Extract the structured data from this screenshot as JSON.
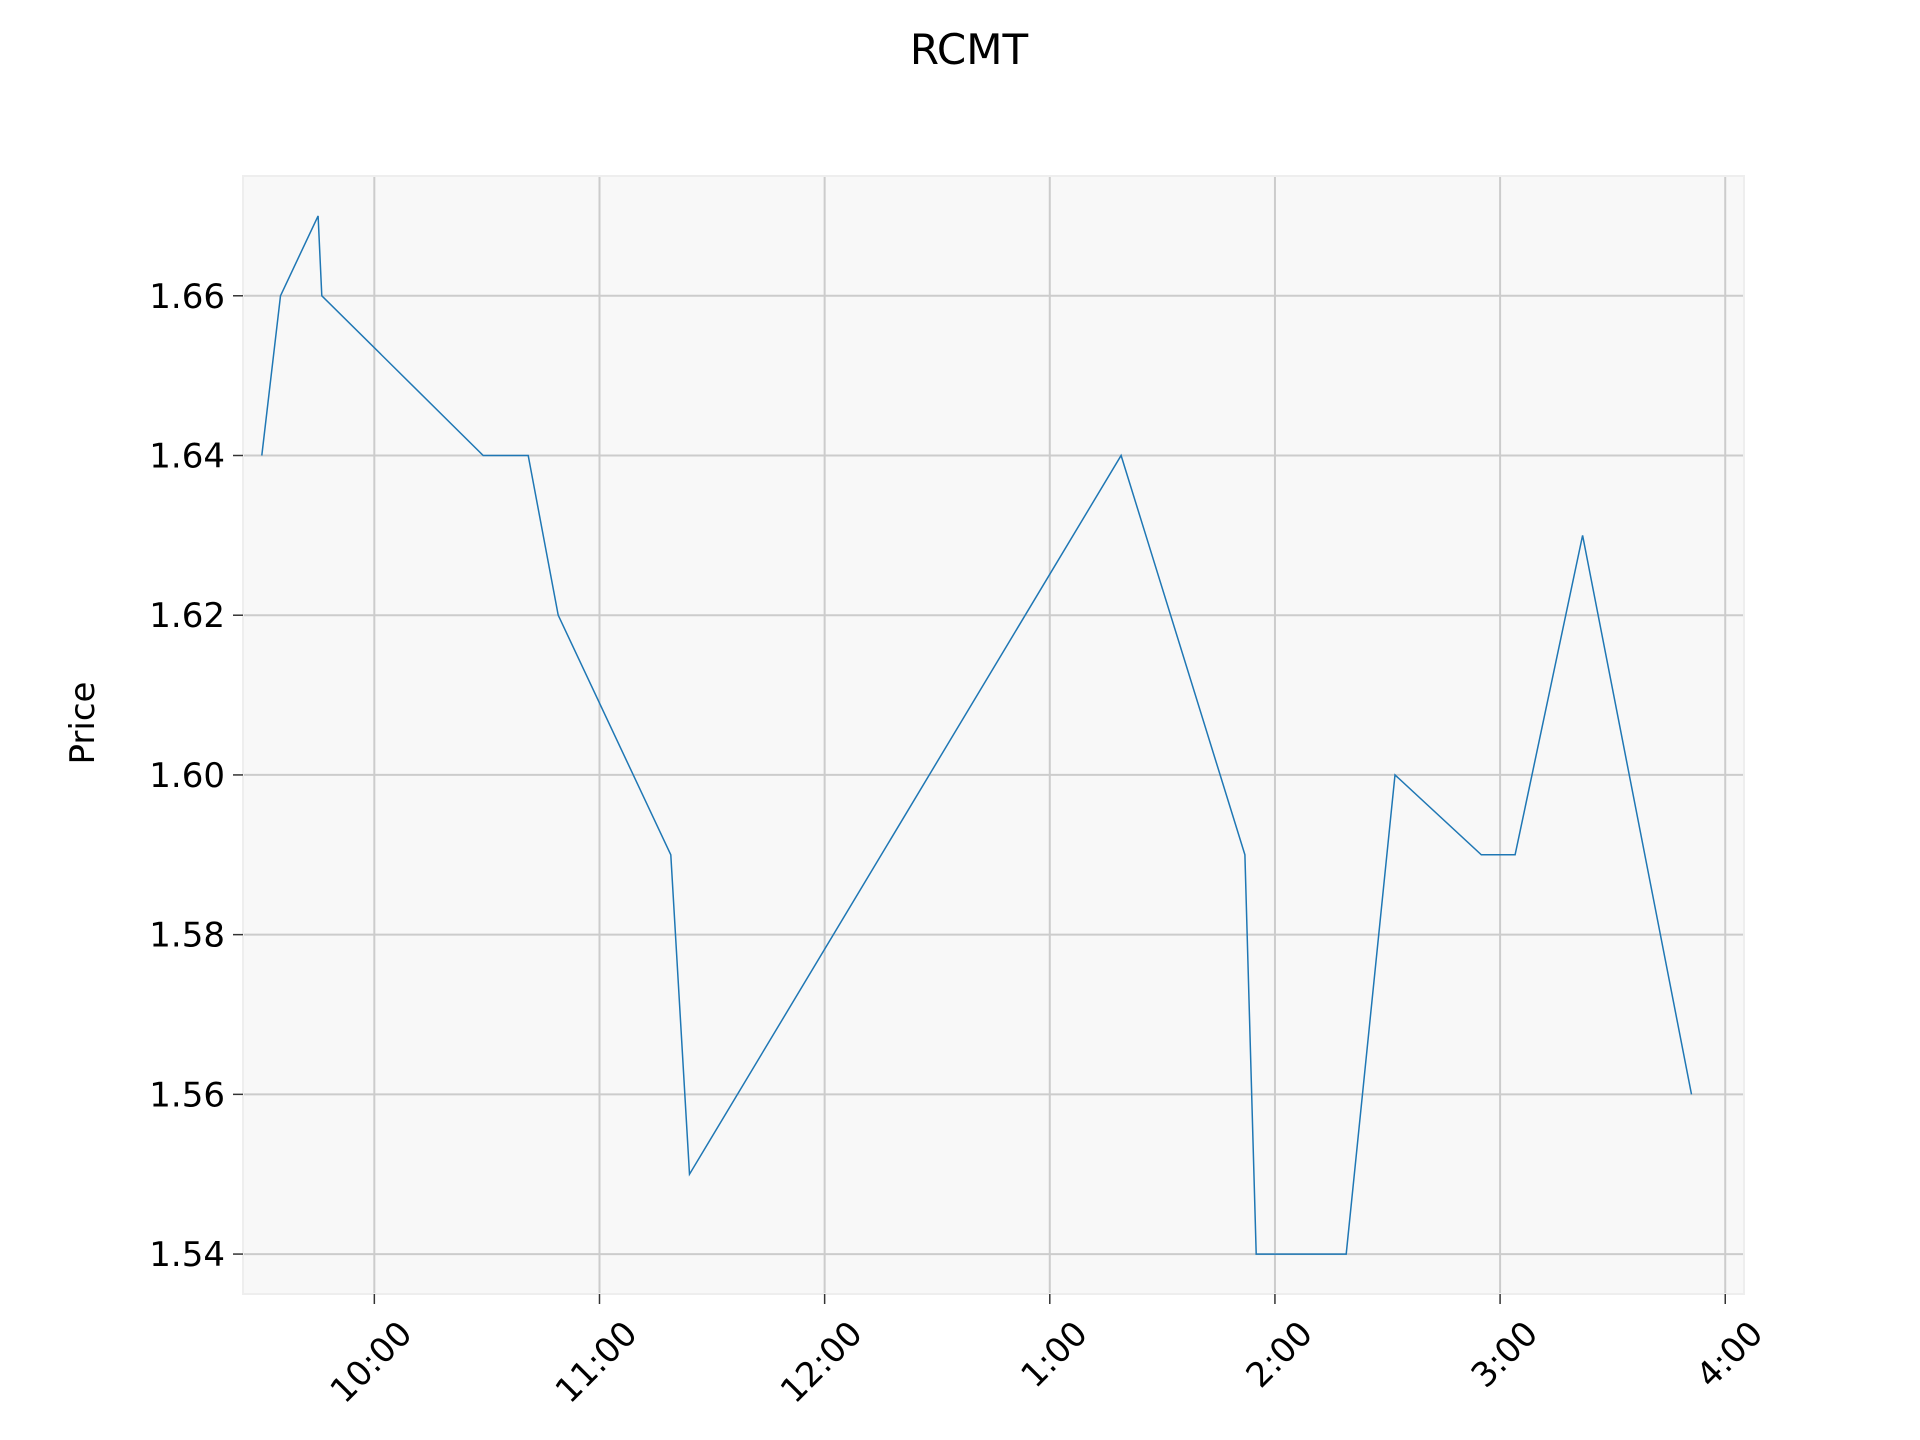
{
  "chart_data": {
    "type": "line",
    "title": "RCMT",
    "xlabel": "",
    "ylabel": "Price",
    "x_unit": "time of day",
    "xlim": [
      "9:25",
      "4:05"
    ],
    "ylim": [
      1.535,
      1.675
    ],
    "x_ticks": [
      {
        "t": "10:00",
        "label": "10:00"
      },
      {
        "t": "11:00",
        "label": "11:00"
      },
      {
        "t": "12:00",
        "label": "12:00"
      },
      {
        "t": "1:00",
        "label": "1:00"
      },
      {
        "t": "2:00",
        "label": "2:00"
      },
      {
        "t": "3:00",
        "label": "3:00"
      },
      {
        "t": "4:00",
        "label": "4:00"
      }
    ],
    "y_ticks": [
      {
        "v": 1.54,
        "label": "1.54"
      },
      {
        "v": 1.56,
        "label": "1.56"
      },
      {
        "v": 1.58,
        "label": "1.58"
      },
      {
        "v": 1.6,
        "label": "1.60"
      },
      {
        "v": 1.62,
        "label": "1.62"
      },
      {
        "v": 1.64,
        "label": "1.64"
      },
      {
        "v": 1.66,
        "label": "1.66"
      }
    ],
    "grid": true,
    "colors": {
      "line": "#1f77b4",
      "plot_bg": "#f8f8f8",
      "grid": "#cccccc",
      "spine": "#eeeeee"
    },
    "series": [
      {
        "points": [
          {
            "t": "9:30",
            "y": 1.64
          },
          {
            "t": "9:35",
            "y": 1.66
          },
          {
            "t": "9:45",
            "y": 1.67
          },
          {
            "t": "9:46",
            "y": 1.66
          },
          {
            "t": "10:29",
            "y": 1.64
          },
          {
            "t": "10:41",
            "y": 1.64
          },
          {
            "t": "10:49",
            "y": 1.62
          },
          {
            "t": "11:19",
            "y": 1.59
          },
          {
            "t": "11:24",
            "y": 1.55
          },
          {
            "t": "1:19",
            "y": 1.64
          },
          {
            "t": "1:52",
            "y": 1.59
          },
          {
            "t": "1:55",
            "y": 1.54
          },
          {
            "t": "2:19",
            "y": 1.54
          },
          {
            "t": "2:32",
            "y": 1.6
          },
          {
            "t": "2:55",
            "y": 1.59
          },
          {
            "t": "3:04",
            "y": 1.59
          },
          {
            "t": "3:22",
            "y": 1.63
          },
          {
            "t": "3:51",
            "y": 1.56
          }
        ]
      }
    ]
  }
}
